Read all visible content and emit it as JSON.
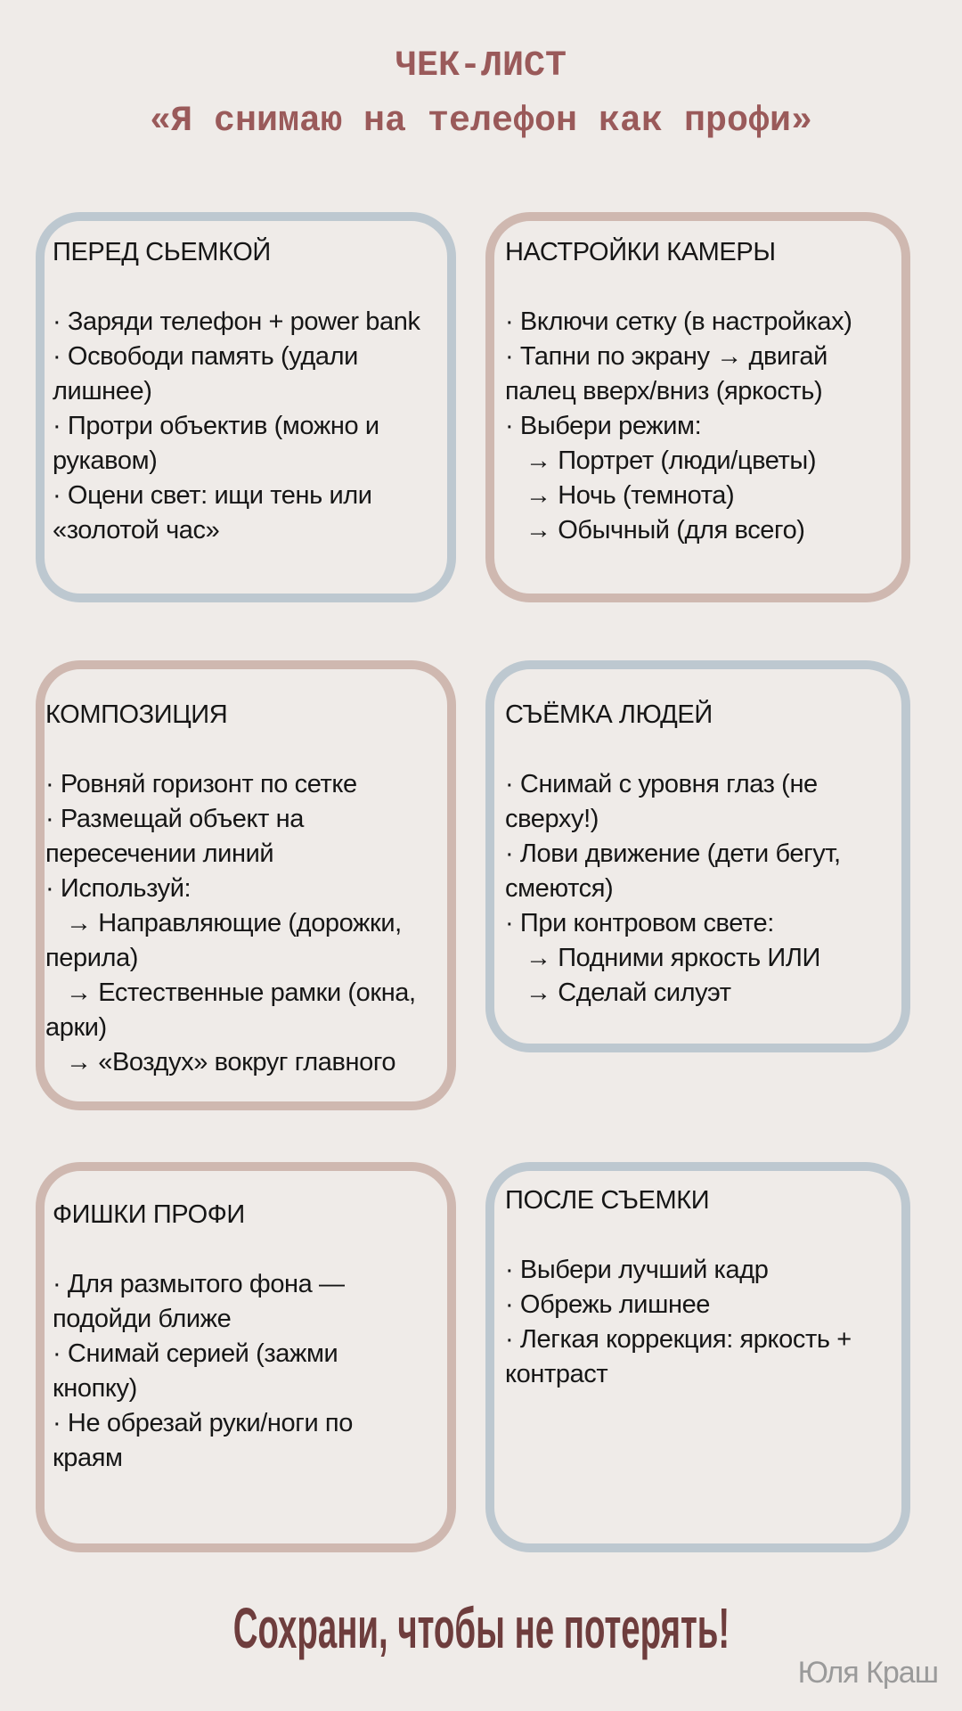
{
  "header": {
    "title": "ЧЕК-ЛИСТ",
    "subtitle": "«Я снимаю на телефон как профи»"
  },
  "colors": {
    "accent_blue": "#bdc8d0",
    "accent_pink": "#cfb8b0",
    "title": "#9a5a5a",
    "footer": "#6e3d3d"
  },
  "cards": [
    {
      "heading": "ПЕРЕД СЬЕМКОЙ",
      "lines": [
        "· Заряди телефон + power bank",
        "· Освободи память (удали",
        "лишнее)",
        "· Протри объектив (можно и",
        "рукавом)",
        "· Оцени свет: ищи тень или",
        "«золотой час»"
      ]
    },
    {
      "heading": "НАСТРОЙКИ КАМЕРЫ",
      "lines": [
        "· Включи сетку (в настройках)",
        "· Тапни по экрану → двигай",
        "палец вверх/вниз (яркость)",
        "· Выбери режим:",
        "   → Портрет (люди/цветы)",
        "   → Ночь (темнота)",
        "   → Обычный (для всего)"
      ]
    },
    {
      "heading": "КОМПОЗИЦИЯ",
      "lines": [
        "· Ровняй горизонт по сетке",
        "· Размещай объект на",
        "пересечении линий",
        "· Используй:",
        "   → Направляющие (дорожки,",
        "перила)",
        "   → Естественные рамки (окна,",
        "арки)",
        "   → «Воздух» вокруг главного"
      ]
    },
    {
      "heading": "СЪЁМКА ЛЮДЕЙ",
      "lines": [
        "· Снимай с уровня глаз (не",
        "сверху!)",
        "· Лови движение (дети бегут,",
        "смеются)",
        "· При контровом свете:",
        "   → Подними яркость ИЛИ",
        "   → Сделай силуэт"
      ]
    },
    {
      "heading": "ФИШКИ ПРОФИ",
      "lines": [
        "· Для размытого фона —",
        "подойди ближе",
        "· Снимай серией (зажми",
        "кнопку)",
        "· Не обрезай руки/ноги по",
        "краям"
      ]
    },
    {
      "heading": "ПОСЛЕ СЪЕМКИ",
      "lines": [
        "· Выбери лучший кадр",
        "· Обрежь лишнее",
        "· Легкая коррекция: яркость +",
        "контраст"
      ]
    }
  ],
  "footer": {
    "cta": "Сохрани, чтобы не потерять!",
    "author": "Юля Краш"
  }
}
